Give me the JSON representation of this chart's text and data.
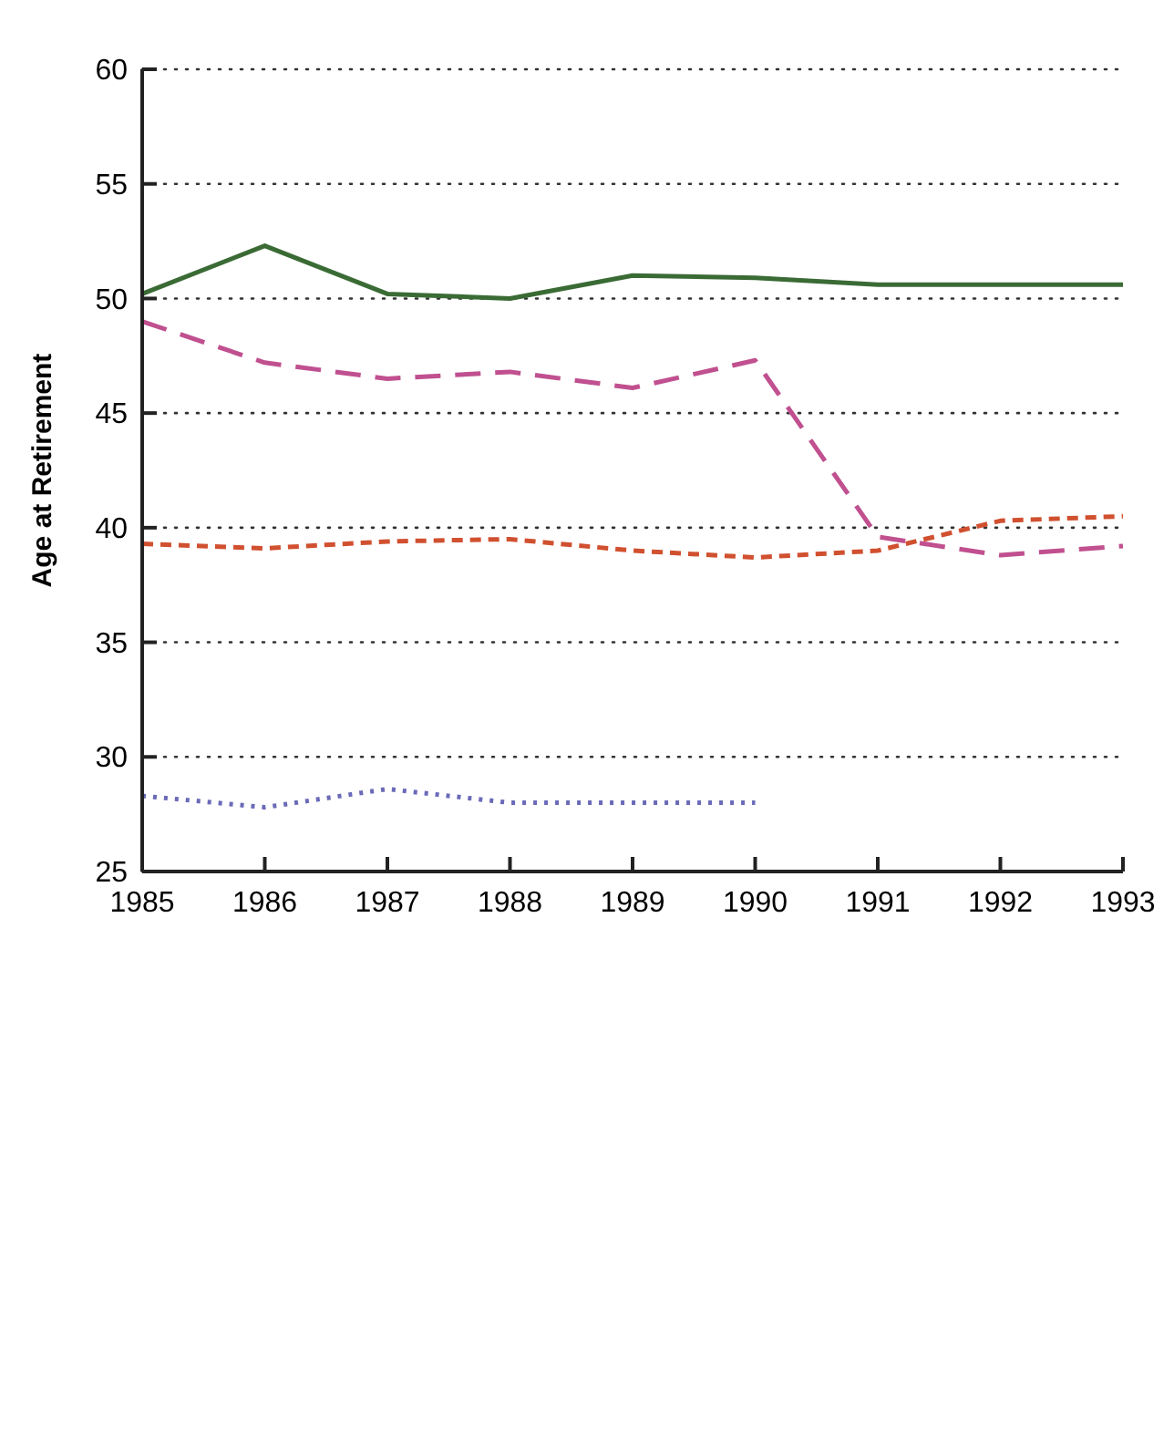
{
  "chart_data": {
    "type": "line",
    "ylabel": "Age at Retirement",
    "x": [
      1985,
      1986,
      1987,
      1988,
      1989,
      1990,
      1991,
      1992,
      1993
    ],
    "xlim": [
      1985,
      1993
    ],
    "xticks": [
      1985,
      1986,
      1987,
      1988,
      1989,
      1990,
      1991,
      1992,
      1993
    ],
    "ylim": [
      25,
      60
    ],
    "yticks": [
      25,
      30,
      35,
      40,
      45,
      50,
      55,
      60
    ],
    "grid": "y",
    "series": [
      {
        "color": "#3a6b35",
        "line_style": "solid",
        "values": [
          50.2,
          52.3,
          50.2,
          50.0,
          51.0,
          50.9,
          50.6,
          50.6,
          50.6
        ]
      },
      {
        "color": "#c0508f",
        "line_style": "dashed",
        "values": [
          49.0,
          47.2,
          46.5,
          46.8,
          46.1,
          47.3,
          39.6,
          38.8,
          39.2
        ]
      },
      {
        "color": "#d0502f",
        "line_style": "shortdash",
        "values": [
          39.3,
          39.1,
          39.4,
          39.5,
          39.0,
          38.7,
          39.0,
          40.3,
          40.5
        ]
      },
      {
        "color": "#6a6ab8",
        "line_style": "dotted",
        "values": [
          28.3,
          27.8,
          28.6,
          28.0,
          28.0,
          28.0,
          null,
          null,
          null
        ]
      }
    ]
  }
}
